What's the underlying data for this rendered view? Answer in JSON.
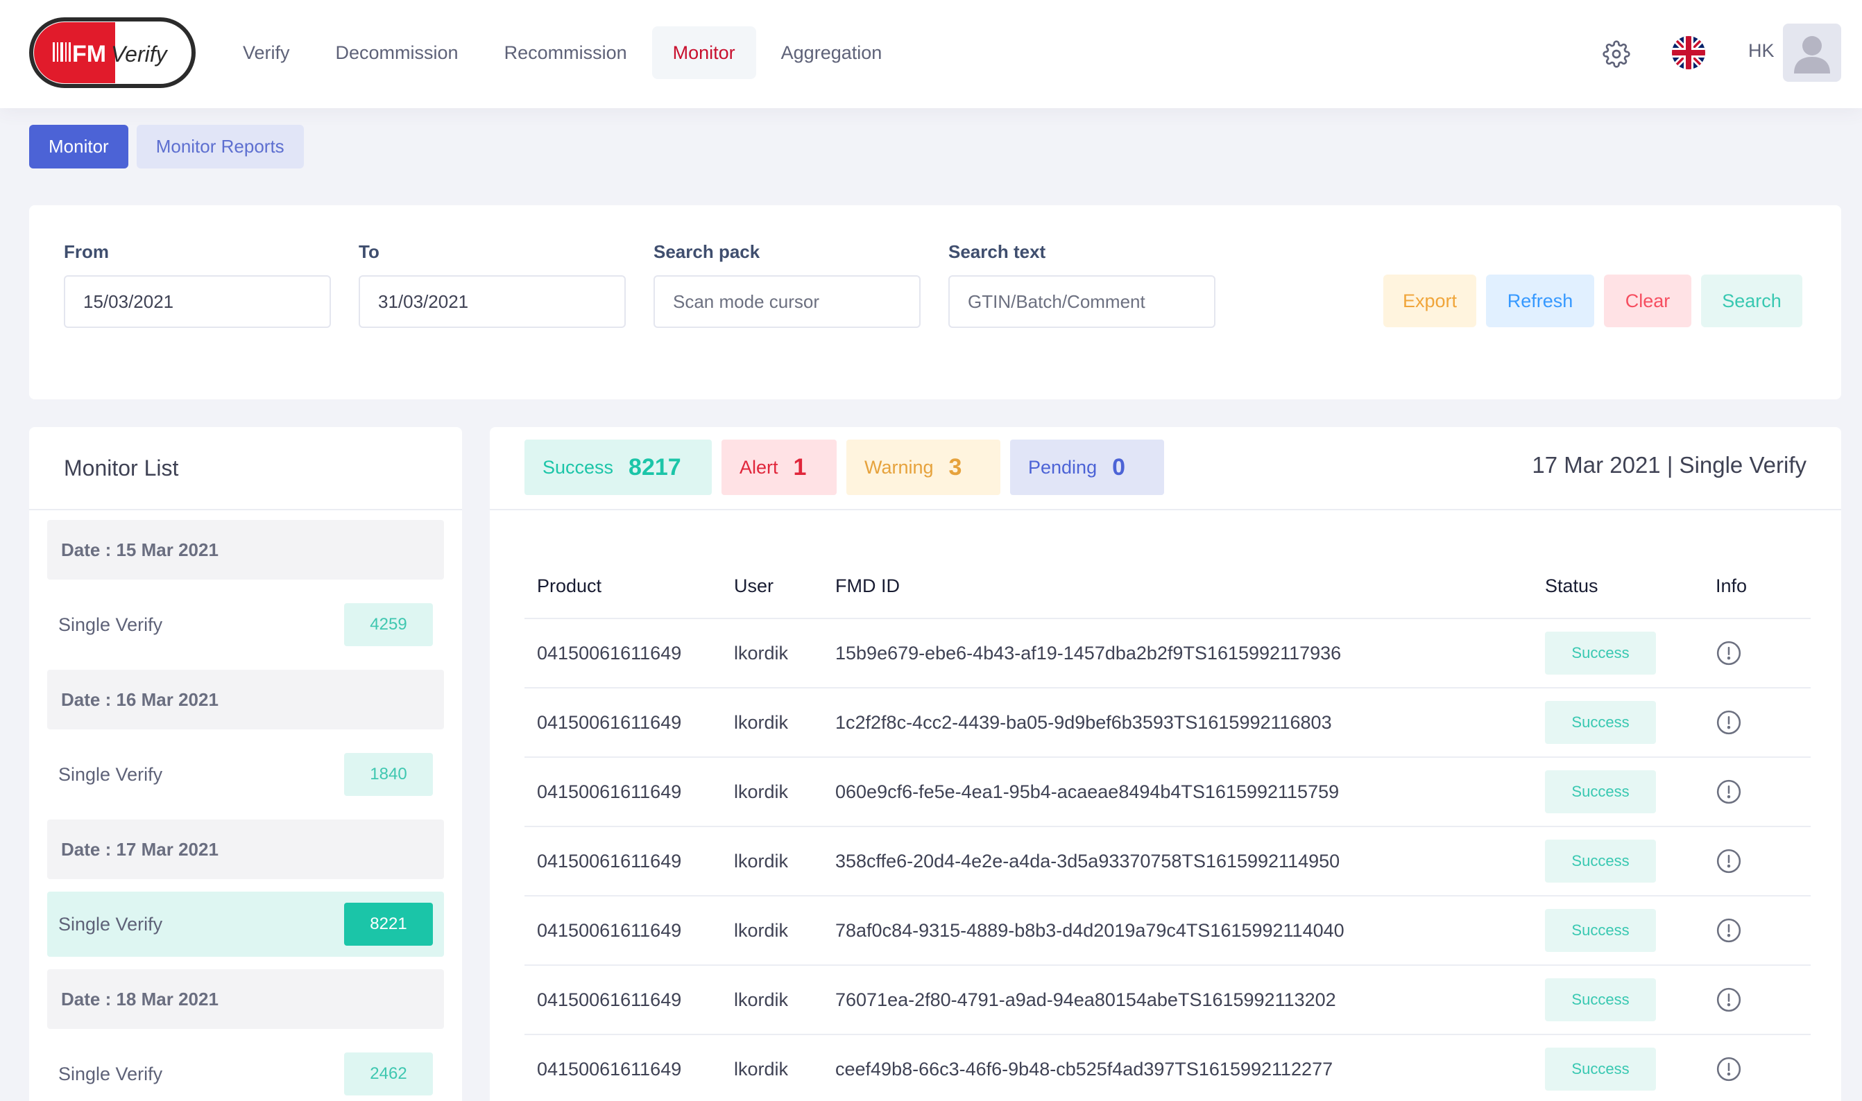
{
  "header": {
    "logo_text_fm": "FM",
    "logo_text_verify": "Verify",
    "nav": [
      {
        "label": "Verify",
        "active": false
      },
      {
        "label": "Decommission",
        "active": false
      },
      {
        "label": "Recommission",
        "active": false
      },
      {
        "label": "Monitor",
        "active": true
      },
      {
        "label": "Aggregation",
        "active": false
      }
    ],
    "user_initials": "HK",
    "icons": [
      "gear-icon",
      "uk-flag-icon",
      "avatar-icon"
    ]
  },
  "subtabs": [
    {
      "label": "Monitor",
      "active": true
    },
    {
      "label": "Monitor Reports",
      "active": false
    }
  ],
  "filters": {
    "from": {
      "label": "From",
      "value": "15/03/2021"
    },
    "to": {
      "label": "To",
      "value": "31/03/2021"
    },
    "search_pack": {
      "label": "Search pack",
      "placeholder": "Scan mode cursor"
    },
    "search_text": {
      "label": "Search text",
      "placeholder": "GTIN/Batch/Comment"
    },
    "buttons": {
      "export": "Export",
      "refresh": "Refresh",
      "clear": "Clear",
      "search": "Search"
    }
  },
  "monitor_list": {
    "title": "Monitor List",
    "groups": [
      {
        "date": "Date : 15 Mar 2021",
        "label": "Single Verify",
        "count": "4259",
        "selected": false
      },
      {
        "date": "Date : 16 Mar 2021",
        "label": "Single Verify",
        "count": "1840",
        "selected": false
      },
      {
        "date": "Date : 17 Mar 2021",
        "label": "Single Verify",
        "count": "8221",
        "selected": true
      },
      {
        "date": "Date : 18 Mar 2021",
        "label": "Single Verify",
        "count": "2462",
        "selected": false
      }
    ]
  },
  "detail": {
    "title": "17 Mar 2021 | Single Verify",
    "stats": {
      "success": {
        "label": "Success",
        "value": "8217"
      },
      "alert": {
        "label": "Alert",
        "value": "1"
      },
      "warning": {
        "label": "Warning",
        "value": "3"
      },
      "pending": {
        "label": "Pending",
        "value": "0"
      }
    },
    "columns": [
      "Product",
      "User",
      "FMD ID",
      "Status",
      "Info"
    ],
    "rows": [
      {
        "product": "04150061611649",
        "user": "lkordik",
        "fmd_id": "15b9e679-ebe6-4b43-af19-1457dba2b2f9TS1615992117936",
        "status": "Success"
      },
      {
        "product": "04150061611649",
        "user": "lkordik",
        "fmd_id": "1c2f2f8c-4cc2-4439-ba05-9d9bef6b3593TS1615992116803",
        "status": "Success"
      },
      {
        "product": "04150061611649",
        "user": "lkordik",
        "fmd_id": "060e9cf6-fe5e-4ea1-95b4-acaeae8494b4TS1615992115759",
        "status": "Success"
      },
      {
        "product": "04150061611649",
        "user": "lkordik",
        "fmd_id": "358cffe6-20d4-4e2e-a4da-3d5a93370758TS1615992114950",
        "status": "Success"
      },
      {
        "product": "04150061611649",
        "user": "lkordik",
        "fmd_id": "78af0c84-9315-4889-b8b3-d4d2019a79c4TS1615992114040",
        "status": "Success"
      },
      {
        "product": "04150061611649",
        "user": "lkordik",
        "fmd_id": "76071ea-2f80-4791-a9ad-94ea80154abeTS1615992113202",
        "status": "Success"
      },
      {
        "product": "04150061611649",
        "user": "lkordik",
        "fmd_id": "ceef49b8-66c3-46f6-9b48-cb525f4ad397TS1615992112277",
        "status": "Success"
      }
    ]
  },
  "colors": {
    "brand_red": "#c8102e",
    "primary": "#4c63d6",
    "success": "#1bc5a8",
    "alert": "#e0263b",
    "warning": "#e6a23c"
  }
}
